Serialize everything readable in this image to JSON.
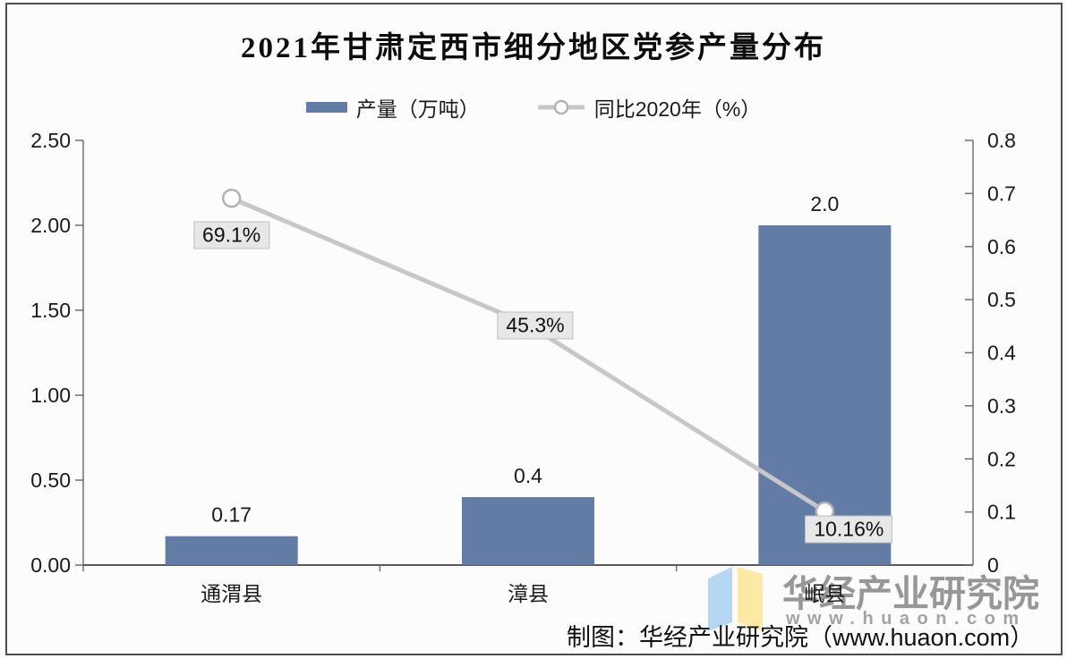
{
  "title": "2021年甘肃定西市细分地区党参产量分布",
  "legend": [
    {
      "label": "产量（万吨）",
      "swatch": "bar-swatch",
      "color": "#637ca6"
    },
    {
      "label": "同比2020年（%）",
      "swatch": "line-swatch",
      "color": "#c7c7c7"
    }
  ],
  "chart_data": {
    "type": "bar",
    "subtype": "combo bar + line, dual y-axes",
    "title": "2021年甘肃定西市细分地区党参产量分布",
    "categories": [
      "通渭县",
      "漳县",
      "岷县"
    ],
    "series": [
      {
        "name": "产量（万吨）",
        "type": "bar",
        "axis": "left",
        "color": "#637ca6",
        "values": [
          0.17,
          0.4,
          2.0
        ],
        "value_labels": [
          "0.17",
          "0.4",
          "2.0"
        ]
      },
      {
        "name": "同比2020年（%）",
        "type": "line",
        "axis": "right",
        "color": "#c7c7c7",
        "marker": "open-circle",
        "values": [
          0.691,
          0.453,
          0.1016
        ],
        "point_labels": [
          "69.1%",
          "45.3%",
          "10.16%"
        ]
      }
    ],
    "left_axis": {
      "range": [
        0,
        2.5
      ],
      "tick_labels": [
        "0.00",
        "0.50",
        "1.00",
        "1.50",
        "2.00",
        "2.50"
      ]
    },
    "right_axis": {
      "range": [
        0,
        0.8
      ],
      "tick_labels": [
        "0",
        "0.1",
        "0.2",
        "0.3",
        "0.4",
        "0.5",
        "0.6",
        "0.7",
        "0.8"
      ]
    },
    "grid": false,
    "legend_position": "top",
    "colors": {
      "bar": "#637ca6",
      "line": "#c7c7c7",
      "marker_stroke": "#b3b3b3",
      "marker_fill": "#ffffff",
      "axis": "#6e6e6e",
      "label_box_bg": "#e7e7e7",
      "label_box_border": "#bfbfbf",
      "text": "#1a1a1a"
    }
  },
  "watermark": {
    "brand": "华经产业研究院",
    "site": "www.huaon.com",
    "logo": "open-book-logo",
    "logo_colors": {
      "left_page": "#b5d7f4",
      "right_page": "#fbe9a4"
    }
  },
  "credit": "制图：华经产业研究院（www.huaon.com）"
}
